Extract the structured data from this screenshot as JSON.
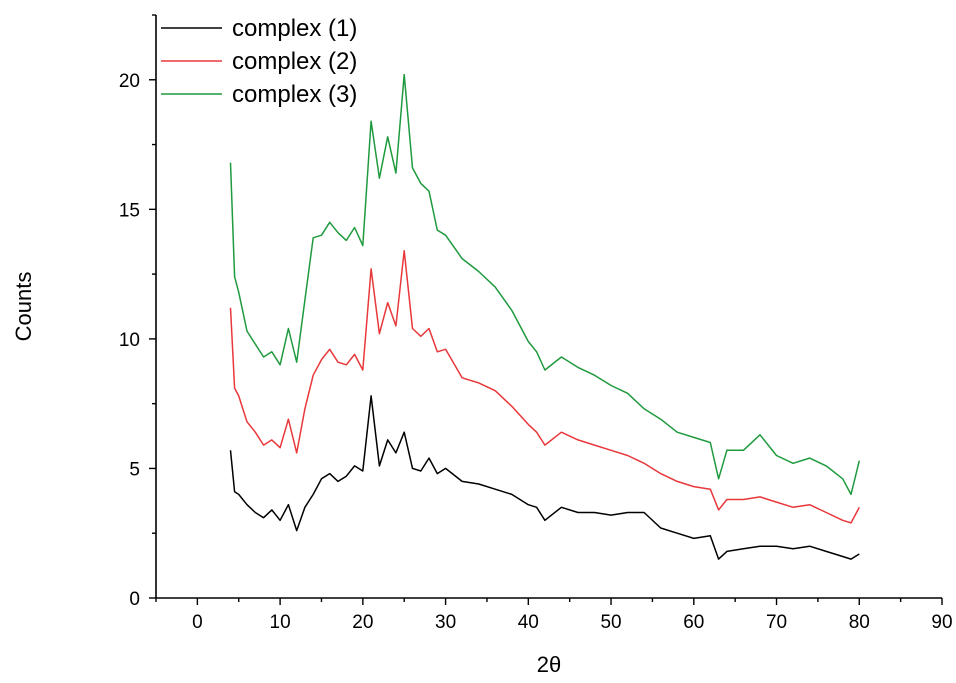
{
  "chart_data": {
    "type": "line",
    "title": "",
    "xlabel": "2θ",
    "ylabel": "Counts",
    "xlim": [
      -5,
      90
    ],
    "ylim": [
      0,
      22.5
    ],
    "x_ticks": [
      0,
      10,
      20,
      30,
      40,
      50,
      60,
      70,
      80,
      90
    ],
    "y_ticks": [
      0,
      5,
      10,
      15,
      20
    ],
    "grid": false,
    "legend_position": "top-left",
    "series": [
      {
        "name": "complex (1)",
        "color": "#000000",
        "x": [
          4,
          4.5,
          5,
          6,
          7,
          8,
          9,
          10,
          11,
          12,
          13,
          14,
          15,
          16,
          17,
          18,
          19,
          20,
          21,
          22,
          23,
          24,
          25,
          26,
          27,
          28,
          29,
          30,
          32,
          34,
          36,
          38,
          40,
          41,
          42,
          44,
          46,
          48,
          50,
          52,
          54,
          56,
          58,
          60,
          62,
          63,
          64,
          66,
          68,
          70,
          72,
          74,
          76,
          78,
          79,
          80
        ],
        "y": [
          5.7,
          4.1,
          4.0,
          3.6,
          3.3,
          3.1,
          3.4,
          3.0,
          3.6,
          2.6,
          3.5,
          4.0,
          4.6,
          4.8,
          4.5,
          4.7,
          5.1,
          4.9,
          7.8,
          5.1,
          6.1,
          5.6,
          6.4,
          5.0,
          4.9,
          5.4,
          4.8,
          5.0,
          4.5,
          4.4,
          4.2,
          4.0,
          3.6,
          3.5,
          3.0,
          3.5,
          3.3,
          3.3,
          3.2,
          3.3,
          3.3,
          2.7,
          2.5,
          2.3,
          2.4,
          1.5,
          1.8,
          1.9,
          2.0,
          2.0,
          1.9,
          2.0,
          1.8,
          1.6,
          1.5,
          1.7
        ]
      },
      {
        "name": "complex (2)",
        "color": "#e8383b",
        "x": [
          4,
          4.5,
          5,
          6,
          7,
          8,
          9,
          10,
          11,
          12,
          13,
          14,
          15,
          16,
          17,
          18,
          19,
          20,
          21,
          22,
          23,
          24,
          25,
          26,
          27,
          28,
          29,
          30,
          32,
          34,
          36,
          38,
          40,
          41,
          42,
          44,
          46,
          48,
          50,
          52,
          54,
          56,
          58,
          60,
          62,
          63,
          64,
          66,
          68,
          70,
          72,
          74,
          76,
          78,
          79,
          80
        ],
        "y": [
          11.2,
          8.1,
          7.8,
          6.8,
          6.4,
          5.9,
          6.1,
          5.8,
          6.9,
          5.6,
          7.3,
          8.6,
          9.2,
          9.6,
          9.1,
          9.0,
          9.4,
          8.8,
          12.7,
          10.2,
          11.4,
          10.5,
          13.4,
          10.4,
          10.1,
          10.4,
          9.5,
          9.6,
          8.5,
          8.3,
          8.0,
          7.4,
          6.7,
          6.4,
          5.9,
          6.4,
          6.1,
          5.9,
          5.7,
          5.5,
          5.2,
          4.8,
          4.5,
          4.3,
          4.2,
          3.4,
          3.8,
          3.8,
          3.9,
          3.7,
          3.5,
          3.6,
          3.3,
          3.0,
          2.9,
          3.5
        ]
      },
      {
        "name": "complex (3)",
        "color": "#1f9a3e",
        "x": [
          4,
          4.5,
          5,
          6,
          7,
          8,
          9,
          10,
          11,
          12,
          13,
          14,
          15,
          16,
          17,
          18,
          19,
          20,
          21,
          22,
          23,
          24,
          25,
          26,
          27,
          28,
          29,
          30,
          32,
          34,
          36,
          38,
          40,
          41,
          42,
          44,
          46,
          48,
          50,
          52,
          54,
          56,
          58,
          60,
          62,
          63,
          64,
          66,
          68,
          70,
          72,
          74,
          76,
          78,
          79,
          80
        ],
        "y": [
          16.8,
          12.4,
          11.8,
          10.3,
          9.8,
          9.3,
          9.5,
          9.0,
          10.4,
          9.1,
          11.5,
          13.9,
          14.0,
          14.5,
          14.1,
          13.8,
          14.3,
          13.6,
          18.4,
          16.2,
          17.8,
          16.4,
          20.2,
          16.6,
          16.0,
          15.7,
          14.2,
          14.0,
          13.1,
          12.6,
          12.0,
          11.1,
          9.9,
          9.5,
          8.8,
          9.3,
          8.9,
          8.6,
          8.2,
          7.9,
          7.3,
          6.9,
          6.4,
          6.2,
          6.0,
          4.6,
          5.7,
          5.7,
          6.3,
          5.5,
          5.2,
          5.4,
          5.1,
          4.6,
          4.0,
          5.3
        ]
      }
    ]
  }
}
